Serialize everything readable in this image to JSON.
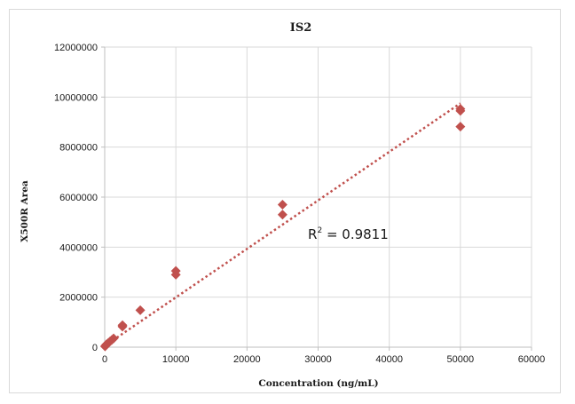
{
  "chart_data": {
    "type": "scatter",
    "title": "IS2",
    "xlabel": "Concentration (ng/mL)",
    "ylabel": "X500R Area",
    "xlim": [
      0,
      60000
    ],
    "ylim": [
      0,
      12000000
    ],
    "x_ticks": [
      "0",
      "10000",
      "20000",
      "30000",
      "40000",
      "50000",
      "60000"
    ],
    "y_ticks": [
      "0",
      "2000000",
      "4000000",
      "6000000",
      "8000000",
      "10000000",
      "12000000"
    ],
    "grid": "vertical and horizontal major gridlines",
    "legend": "none",
    "marker": "diamond",
    "marker_color": "#c0504d",
    "trendline_color": "#c0504d",
    "trendline": {
      "type": "linear",
      "style": "dotted",
      "x_range": [
        0,
        50000
      ],
      "y_start": 50000,
      "y_end": 9750000
    },
    "annotation": {
      "text_base": "R",
      "text_sup": "2",
      "text_rest": " = 0.9811"
    },
    "points": [
      {
        "x": 50,
        "y": 30000
      },
      {
        "x": 100,
        "y": 60000
      },
      {
        "x": 250,
        "y": 110000
      },
      {
        "x": 500,
        "y": 170000
      },
      {
        "x": 750,
        "y": 230000
      },
      {
        "x": 1000,
        "y": 290000
      },
      {
        "x": 1250,
        "y": 350000
      },
      {
        "x": 2500,
        "y": 820000
      },
      {
        "x": 2500,
        "y": 880000
      },
      {
        "x": 5000,
        "y": 1480000
      },
      {
        "x": 10000,
        "y": 2900000
      },
      {
        "x": 10000,
        "y": 3050000
      },
      {
        "x": 25000,
        "y": 5300000
      },
      {
        "x": 25000,
        "y": 5700000
      },
      {
        "x": 50000,
        "y": 8820000
      },
      {
        "x": 50000,
        "y": 9450000
      },
      {
        "x": 50000,
        "y": 9530000
      }
    ]
  }
}
